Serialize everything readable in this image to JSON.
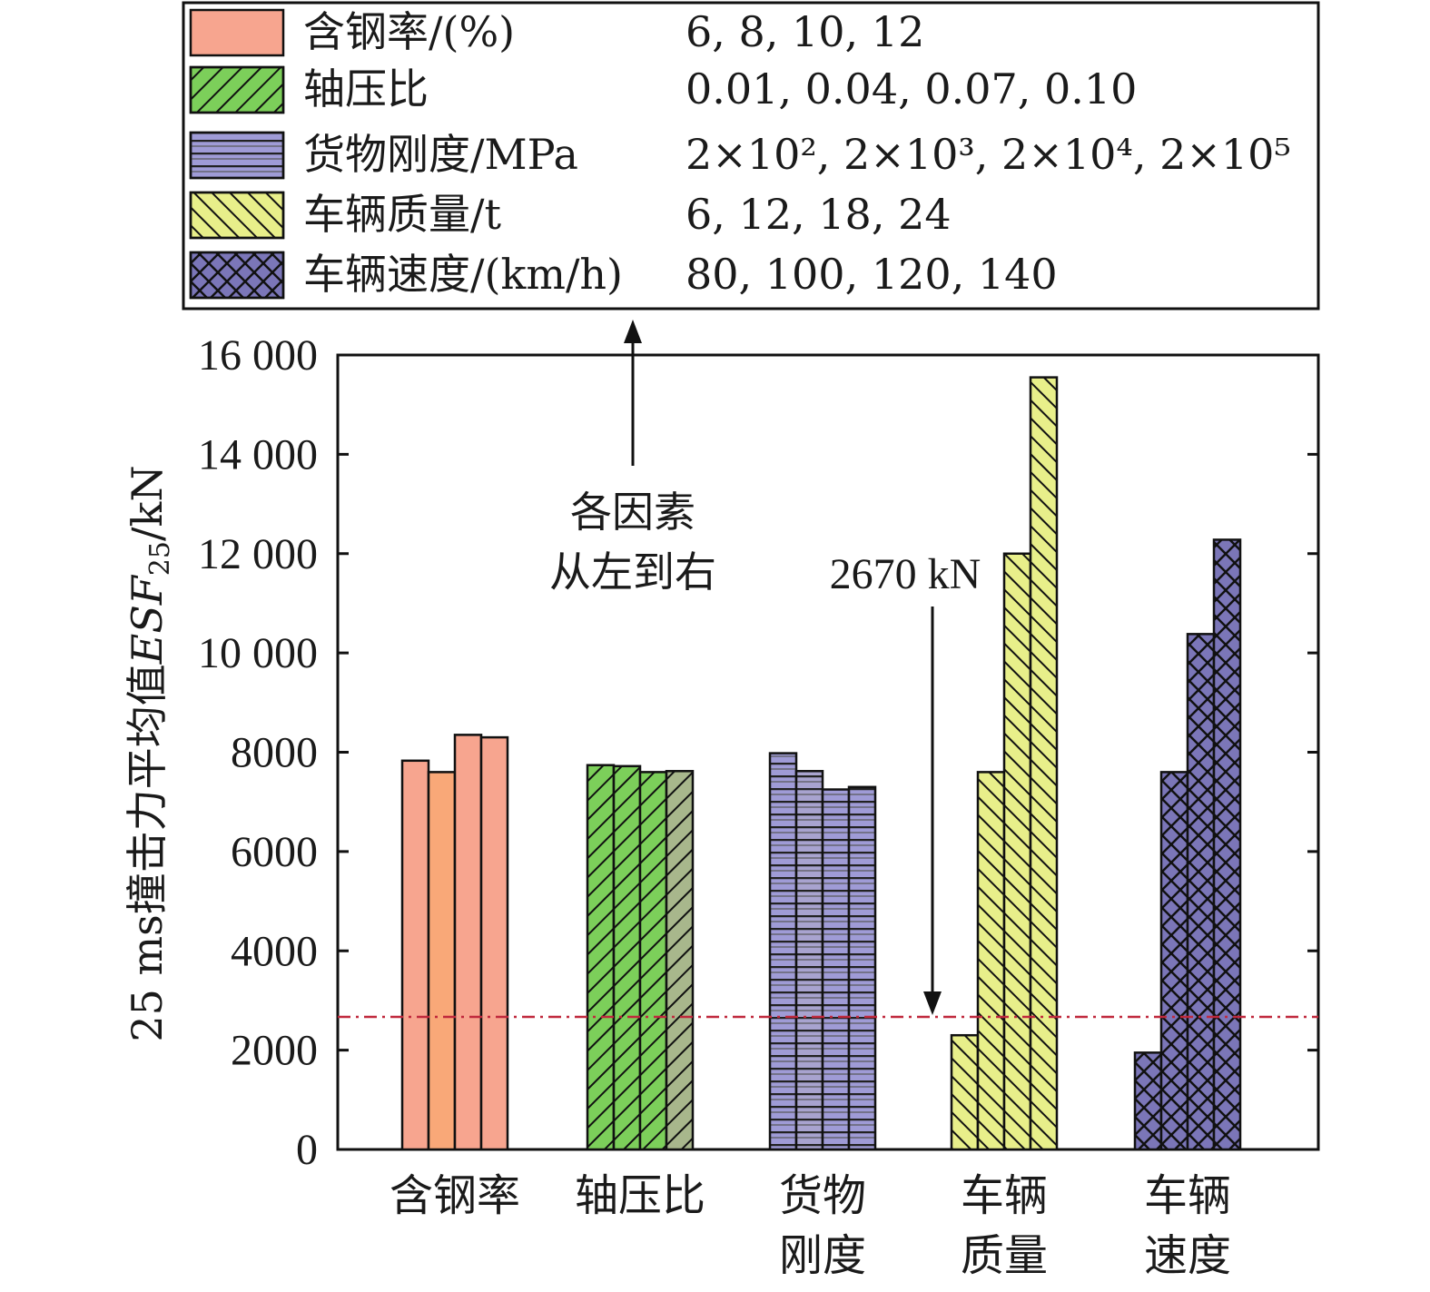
{
  "chart_data": {
    "type": "bar",
    "title": "",
    "ylabel": "25 ms撞击力平均值ESF25/kN",
    "ylim": [
      0,
      16000
    ],
    "yticks": [
      {
        "value": 0,
        "label": "0"
      },
      {
        "value": 2000,
        "label": "2000"
      },
      {
        "value": 4000,
        "label": "4000"
      },
      {
        "value": 6000,
        "label": "6000"
      },
      {
        "value": 8000,
        "label": "8000"
      },
      {
        "value": 10000,
        "label": "10 000"
      },
      {
        "value": 12000,
        "label": "12 000"
      },
      {
        "value": 14000,
        "label": "14 000"
      },
      {
        "value": 16000,
        "label": "16 000"
      }
    ],
    "groups": [
      {
        "key": "steel",
        "label_lines": [
          "含钢率"
        ],
        "legend_name": "含钢率/(%)",
        "legend_values": "6, 8, 10, 12",
        "pattern": "solid",
        "colors": [
          "#f7a58f",
          "#f9a878",
          "#f7a58f",
          "#f7a58f"
        ],
        "values": [
          7830,
          7600,
          8350,
          8300
        ]
      },
      {
        "key": "axial",
        "label_lines": [
          "轴压比"
        ],
        "legend_name": "轴压比",
        "legend_values": "0.01, 0.04, 0.07, 0.10",
        "pattern": "diag",
        "colors": [
          "#7ccf5a",
          "#7ccf5a",
          "#7ccf5a",
          "#a8b78c"
        ],
        "values": [
          7740,
          7720,
          7600,
          7620
        ]
      },
      {
        "key": "cargo",
        "label_lines": [
          "货物",
          "刚度"
        ],
        "legend_name": "货物刚度/MPa",
        "legend_values": "2×10², 2×10³, 2×10⁴, 2×10⁵",
        "pattern": "horiz",
        "colors": [
          "#9f9bd6",
          "#a8a3cf",
          "#9f9bd6",
          "#9f9bd6"
        ],
        "values": [
          7980,
          7620,
          7250,
          7300
        ]
      },
      {
        "key": "mass",
        "label_lines": [
          "车辆",
          "质量"
        ],
        "legend_name": "车辆质量/t",
        "legend_values": "6, 12, 18, 24",
        "pattern": "diag-back",
        "colors": [
          "#e8ef8a",
          "#e8ef8a",
          "#e8ef8a",
          "#e8ef8a"
        ],
        "values": [
          2300,
          7600,
          12000,
          15550
        ]
      },
      {
        "key": "speed",
        "label_lines": [
          "车辆",
          "速度"
        ],
        "legend_name": "车辆速度/(km/h)",
        "legend_values": "80, 100, 120, 140",
        "pattern": "cross",
        "colors": [
          "#7b76b8",
          "#7b76b8",
          "#7b76b8",
          "#7b76b8"
        ],
        "values": [
          1950,
          7600,
          10380,
          12280
        ]
      }
    ],
    "reference_line": {
      "value": 2670,
      "label": "2670 kN",
      "color": "#c0283c"
    },
    "annotation": {
      "lines": [
        "各因素",
        "从左到右"
      ]
    }
  }
}
